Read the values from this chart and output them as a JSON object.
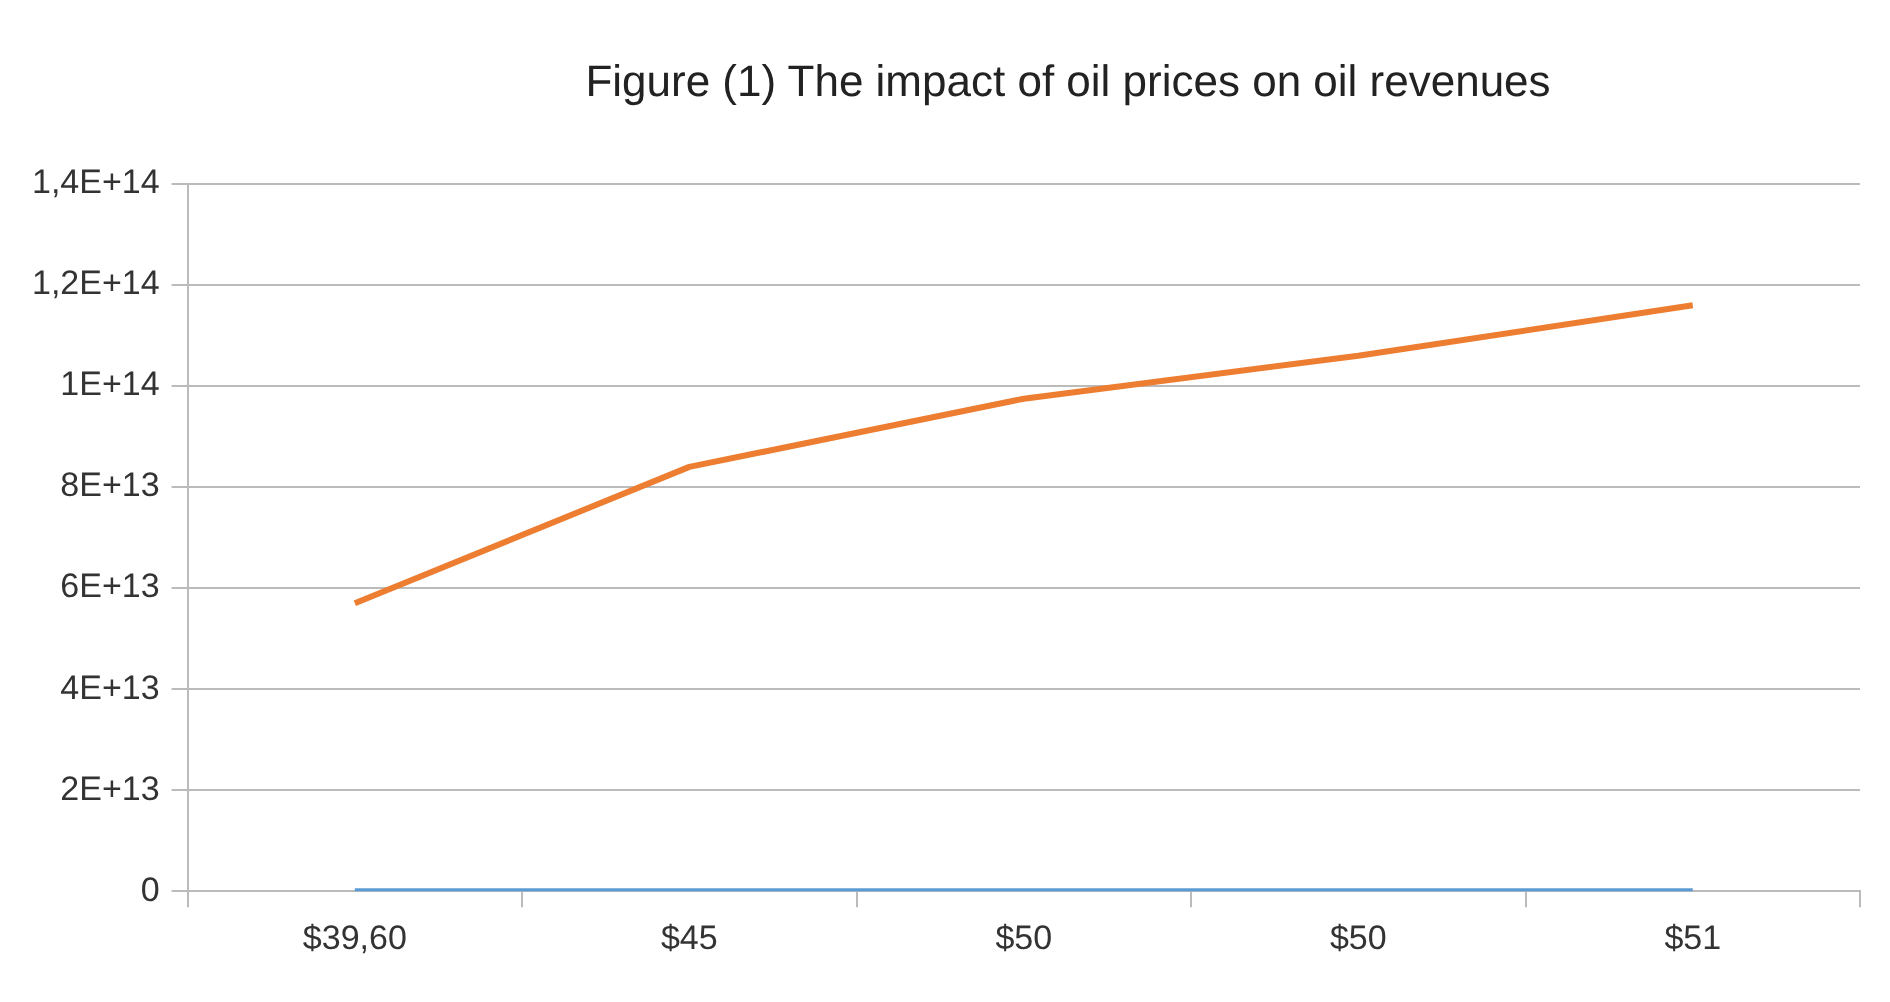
{
  "chart_data": {
    "type": "line",
    "title": "Figure (1) The impact of oil prices on oil revenues",
    "categories": [
      "$39,60",
      "$45",
      "$50",
      "$50",
      "$51"
    ],
    "series": [
      {
        "color": "#5b9bd5",
        "values": [
          0,
          0,
          0,
          0,
          0
        ]
      },
      {
        "color": "#ed7d31",
        "values": [
          57000000000000,
          84000000000000,
          97500000000000,
          106000000000000,
          116000000000000
        ]
      }
    ],
    "ylim": [
      0,
      140000000000000
    ],
    "yticks": [
      0,
      {
        "value": 20000000000000,
        "label": "2E+13"
      },
      {
        "value": 40000000000000,
        "label": "4E+13"
      },
      {
        "value": 60000000000000,
        "label": "6E+13"
      },
      {
        "value": 80000000000000,
        "label": "8E+13"
      },
      {
        "value": 100000000000000,
        "label": "1E+14"
      },
      {
        "value": 120000000000000,
        "label": "1,2E+14"
      },
      {
        "value": 140000000000000,
        "label": "1,4E+14"
      }
    ],
    "grid": "y",
    "legend": false,
    "marker": "none",
    "line_style": "solid"
  }
}
